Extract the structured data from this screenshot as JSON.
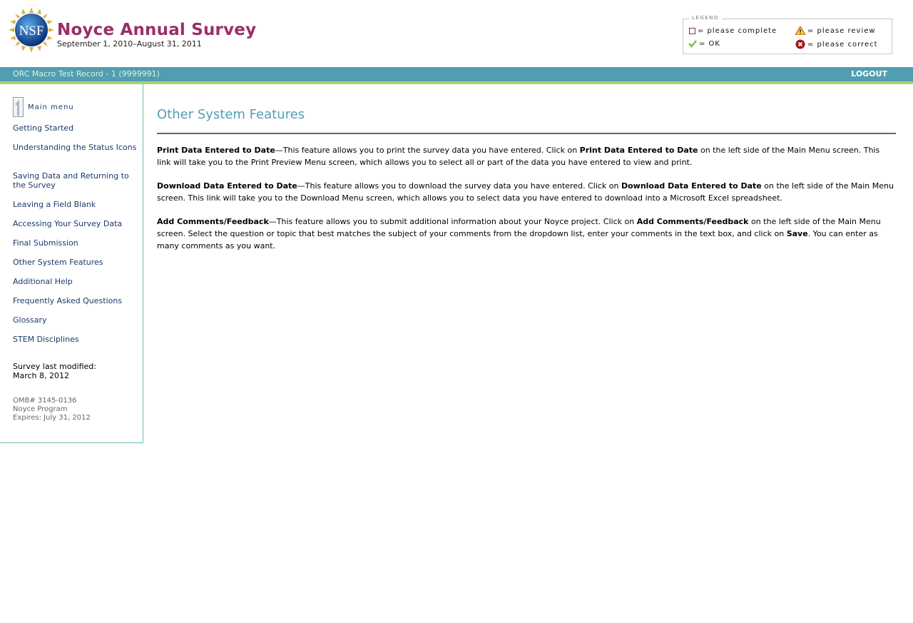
{
  "header": {
    "logo_text": "NSF",
    "title": "Noyce Annual Survey",
    "subtitle": "September 1, 2010–August 31, 2011"
  },
  "legend": {
    "title": "LEGEND",
    "items": [
      {
        "icon": "empty-box-icon",
        "label": "= please complete"
      },
      {
        "icon": "warning-icon",
        "label": "= please review"
      },
      {
        "icon": "checkmark-icon",
        "label": "= OK"
      },
      {
        "icon": "error-x-icon",
        "label": "= please correct"
      }
    ]
  },
  "bar": {
    "record": "ORC Macro Test Record - 1 (9999991)",
    "logout": "LOGOUT"
  },
  "colors": {
    "brand": "#9b2d6a",
    "teal": "#519eb2",
    "green": "#a5d46e"
  },
  "sidebar": {
    "main_menu": "Main menu",
    "items": [
      {
        "label": "Getting Started"
      },
      {
        "label": "Understanding the Status Icons"
      },
      {
        "label": "Saving Data and Returning to the Survey"
      },
      {
        "label": "Leaving a Field Blank"
      },
      {
        "label": "Accessing Your Survey Data"
      },
      {
        "label": "Final Submission"
      },
      {
        "label": "Other System Features"
      },
      {
        "label": "Additional Help"
      },
      {
        "label": "Frequently Asked Questions"
      },
      {
        "label": "Glossary"
      },
      {
        "label": "STEM Disciplines"
      }
    ],
    "modified_label": "Survey last modified:",
    "modified_date": "March 8, 2012",
    "omb": "OMB# 3145-0136",
    "program": "Noyce Program",
    "expires": "Expires: July 31, 2012"
  },
  "main": {
    "title": "Other System Features",
    "paragraphs": [
      {
        "segments": [
          {
            "b": true,
            "t": "Print Data Entered to Date"
          },
          {
            "b": false,
            "t": "—This feature allows you to print the survey data you have entered. Click on "
          },
          {
            "b": true,
            "t": "Print Data Entered to Date"
          },
          {
            "b": false,
            "t": " on the left side of the Main Menu screen. This link will take you to the Print Preview Menu screen, which allows you to select all or part of the data you have entered to view and print."
          }
        ]
      },
      {
        "segments": [
          {
            "b": true,
            "t": "Download Data Entered to Date"
          },
          {
            "b": false,
            "t": "—This feature allows you to download the survey data you have entered. Click on "
          },
          {
            "b": true,
            "t": "Download Data Entered to Date"
          },
          {
            "b": false,
            "t": " on the left side of the Main Menu screen. This link will take you to the Download Menu screen, which allows you to select data you have entered to download into a Microsoft Excel spreadsheet."
          }
        ]
      },
      {
        "segments": [
          {
            "b": true,
            "t": "Add Comments/Feedback"
          },
          {
            "b": false,
            "t": "—This feature allows you to submit additional information about your Noyce project. Click on "
          },
          {
            "b": true,
            "t": "Add Comments/Feedback"
          },
          {
            "b": false,
            "t": " on the left side of the Main Menu screen. Select the question or topic that best matches the subject of your comments from the dropdown list, enter your comments in the text box, and click on "
          },
          {
            "b": true,
            "t": "Save"
          },
          {
            "b": false,
            "t": ". You can enter as many comments as you want."
          }
        ]
      }
    ]
  }
}
